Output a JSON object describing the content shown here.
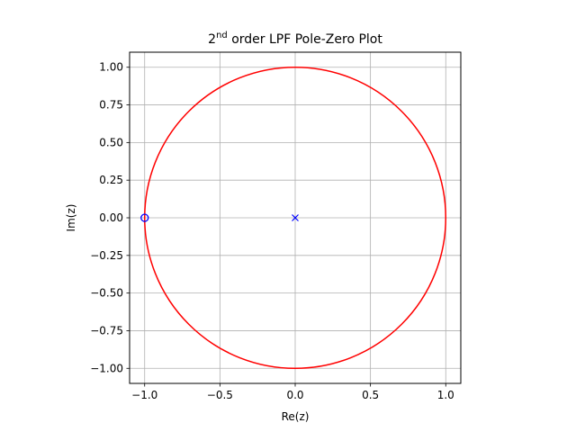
{
  "chart_data": {
    "type": "scatter",
    "title": {
      "prefix": "2",
      "superscript": "nd",
      "rest": " order LPF Pole-Zero Plot"
    },
    "xlabel": "Re(z)",
    "ylabel": "Im(z)",
    "xlim": [
      -1.1,
      1.1
    ],
    "ylim": [
      -1.1,
      1.1
    ],
    "grid": true,
    "x_ticks": [
      -1.0,
      -0.5,
      0.0,
      0.5,
      1.0
    ],
    "x_tick_labels": [
      "−1.0",
      "−0.5",
      "0.0",
      "0.5",
      "1.0"
    ],
    "y_ticks": [
      1.0,
      0.75,
      0.5,
      0.25,
      0.0,
      -0.25,
      -0.5,
      -0.75,
      -1.0
    ],
    "y_tick_labels": [
      "1.00",
      "0.75",
      "0.50",
      "0.25",
      "0.00",
      "−0.25",
      "−0.50",
      "−0.75",
      "−1.00"
    ],
    "unit_circle": {
      "center": [
        0,
        0
      ],
      "radius": 1,
      "color": "#ff0000"
    },
    "series": [
      {
        "marker": "o",
        "color": "#0000ff",
        "points": [
          [
            -1.0,
            0.0
          ]
        ]
      },
      {
        "marker": "x",
        "color": "#0000ff",
        "points": [
          [
            0.0,
            0.0
          ]
        ]
      }
    ]
  }
}
